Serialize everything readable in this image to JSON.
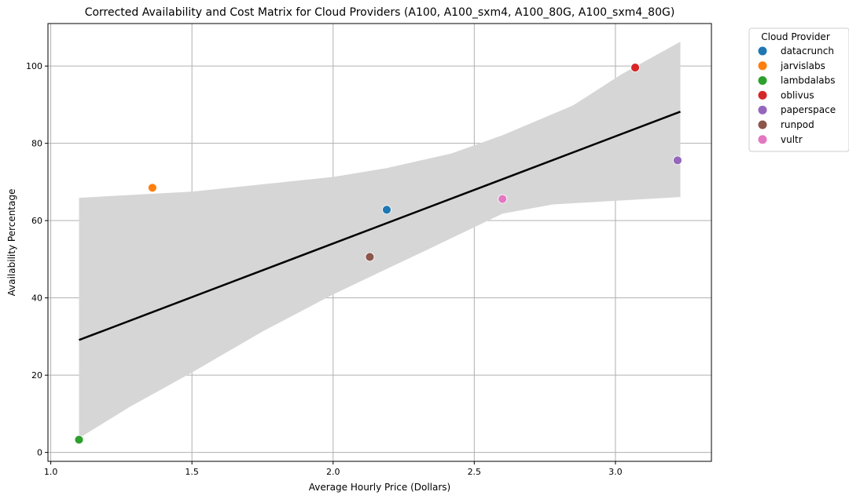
{
  "chart_data": {
    "type": "scatter",
    "title": "Corrected Availability and Cost Matrix for Cloud Providers (A100, A100_sxm4, A100_80G, A100_sxm4_80G)",
    "xlabel": "Average Hourly Price (Dollars)",
    "ylabel": "Availability Percentage",
    "xlim": [
      0.99,
      3.34
    ],
    "ylim": [
      -2.3,
      111
    ],
    "xticks": [
      1.0,
      1.5,
      2.0,
      2.5,
      3.0
    ],
    "xtick_labels": [
      "1.0",
      "1.5",
      "2.0",
      "2.5",
      "3.0"
    ],
    "yticks": [
      0,
      20,
      40,
      60,
      80,
      100
    ],
    "ytick_labels": [
      "0",
      "20",
      "40",
      "60",
      "80",
      "100"
    ],
    "grid": true,
    "legend": {
      "title": "Cloud Provider",
      "placement": "outside-top-right"
    },
    "series": [
      {
        "name": "datacrunch",
        "color": "#1f77b4",
        "x": 2.19,
        "y": 62.8
      },
      {
        "name": "jarvislabs",
        "color": "#ff7f0e",
        "x": 1.36,
        "y": 68.5
      },
      {
        "name": "lambdalabs",
        "color": "#2ca02c",
        "x": 1.1,
        "y": 3.3
      },
      {
        "name": "oblivus",
        "color": "#d62728",
        "x": 3.07,
        "y": 99.6
      },
      {
        "name": "paperspace",
        "color": "#9467bd",
        "x": 3.22,
        "y": 75.6
      },
      {
        "name": "runpod",
        "color": "#8c564b",
        "x": 2.13,
        "y": 50.6
      },
      {
        "name": "vultr",
        "color": "#e377c2",
        "x": 2.6,
        "y": 65.6
      }
    ],
    "regression": {
      "color": "#000000",
      "line": [
        [
          1.1,
          29.1
        ],
        [
          3.23,
          88.2
        ]
      ],
      "ci_color": "#d6d6d6",
      "ci_upper": [
        [
          1.1,
          65.9
        ],
        [
          1.5,
          67.5
        ],
        [
          2.0,
          71.3
        ],
        [
          2.19,
          73.6
        ],
        [
          2.42,
          77.4
        ],
        [
          2.6,
          82.1
        ],
        [
          2.85,
          89.8
        ],
        [
          3.02,
          97.8
        ],
        [
          3.23,
          106.3
        ]
      ],
      "ci_lower": [
        [
          1.1,
          3.7
        ],
        [
          1.28,
          11.8
        ],
        [
          1.5,
          20.7
        ],
        [
          1.75,
          31.3
        ],
        [
          2.0,
          40.9
        ],
        [
          2.32,
          52.0
        ],
        [
          2.6,
          61.8
        ],
        [
          2.78,
          64.2
        ],
        [
          3.23,
          66.1
        ]
      ]
    }
  }
}
